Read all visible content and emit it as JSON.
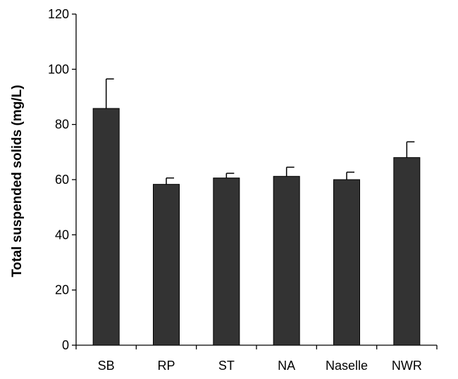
{
  "chart_data": {
    "type": "bar",
    "title": "",
    "xlabel": "",
    "ylabel": "Total suspended solids (mg/L)",
    "categories": [
      "SB",
      "RP",
      "ST",
      "NA",
      "Naselle",
      "NWR"
    ],
    "values": [
      85.8,
      58.3,
      60.6,
      61.2,
      60.0,
      68.0
    ],
    "error_upper": [
      10.7,
      2.3,
      1.7,
      3.3,
      2.7,
      5.7
    ],
    "ylim": [
      0,
      120
    ],
    "yticks": [
      0,
      20,
      40,
      60,
      80,
      100,
      120
    ],
    "grid": false,
    "legend": "none",
    "colors": {
      "bar": "#333333",
      "bar_stroke": "#000000",
      "axis": "#000000"
    }
  }
}
